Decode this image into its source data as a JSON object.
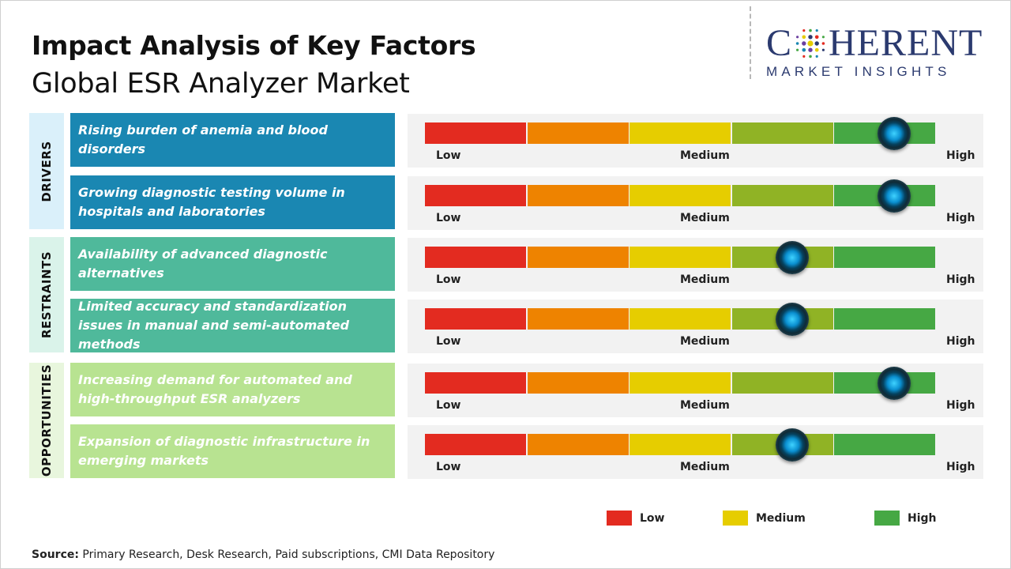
{
  "header": {
    "title": "Impact Analysis of Key Factors",
    "subtitle": "Global ESR Analyzer Market"
  },
  "logo": {
    "word_left": "C",
    "word_right": "HERENT",
    "tagline": "MARKET INSIGHTS",
    "color": "#2b3a6f"
  },
  "chart_data": {
    "type": "table",
    "scale": {
      "min": 0,
      "max": 5,
      "labels": [
        "Low",
        "Medium",
        "High"
      ]
    },
    "segment_colors": [
      "#e32b20",
      "#ee8300",
      "#e6cd00",
      "#90b325",
      "#46a844"
    ],
    "categories": [
      {
        "name": "DRIVERS",
        "bg": "#daf0fa",
        "box_color": "#1a87b2"
      },
      {
        "name": "RESTRAINTS",
        "bg": "#daf3ea",
        "box_color": "#4fb99b"
      },
      {
        "name": "OPPORTUNITIES",
        "bg": "#e8f6dd",
        "box_color": "#b8e391"
      }
    ],
    "factors": [
      {
        "category": "DRIVERS",
        "label": "Rising burden of anemia and blood disorders",
        "impact": 4.6
      },
      {
        "category": "DRIVERS",
        "label": "Growing diagnostic testing volume in hospitals and laboratories",
        "impact": 4.6
      },
      {
        "category": "RESTRAINTS",
        "label": "Availability of advanced diagnostic alternatives",
        "impact": 3.6
      },
      {
        "category": "RESTRAINTS",
        "label": "Limited accuracy and standardization issues in manual and semi-automated methods",
        "impact": 3.6
      },
      {
        "category": "OPPORTUNITIES",
        "label": "Increasing demand for automated and high-throughput ESR analyzers",
        "impact": 4.6
      },
      {
        "category": "OPPORTUNITIES",
        "label": "Expansion of diagnostic infrastructure in emerging markets",
        "impact": 3.6
      }
    ],
    "legend": [
      {
        "label": "Low",
        "color": "#e32b20"
      },
      {
        "label": "Medium",
        "color": "#e6cd00"
      },
      {
        "label": "High",
        "color": "#46a844"
      }
    ]
  },
  "source": {
    "prefix": "Source:",
    "text": " Primary Research, Desk Research, Paid subscriptions, CMI Data Repository"
  }
}
